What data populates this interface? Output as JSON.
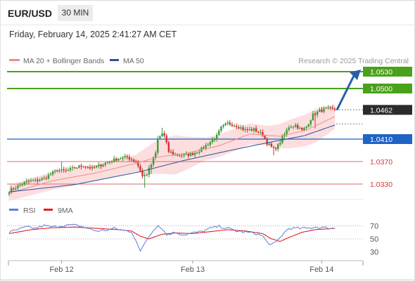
{
  "header": {
    "symbol": "EUR/USD",
    "timeframe": "30 MIN",
    "datetime": "Friday, February 14, 2025 2:41:27 AM CET"
  },
  "legend": {
    "ma20_label": "MA 20 + Bollinger Bands",
    "ma50_label": "MA 50",
    "credit": "Research © 2025 Trading Central",
    "rsi_label": "RSI",
    "rsi_ma_label": "9MA"
  },
  "colors": {
    "bull": "#3a9b3a",
    "bear": "#d23030",
    "ma20": "#f08c8c",
    "band_fill": "#fbd3d3",
    "ma50": "#2b4f9e",
    "resistance": "#4aa11a",
    "pivot": "#1f63c6",
    "support": "#e26b6b",
    "rsi": "#5b7fd9",
    "rsi_ma": "#e02020",
    "arrow": "#2a5ea8"
  },
  "chart_data": {
    "type": "candlestick",
    "instrument": "EUR/USD",
    "interval": "30 MIN",
    "y_range": [
      1.0305,
      1.0545
    ],
    "x_labels": [
      "Feb 12",
      "Feb 13",
      "Feb 14"
    ],
    "levels": [
      {
        "value": "1.0530",
        "kind": "resistance",
        "boxed": true
      },
      {
        "value": "1.0500",
        "kind": "resistance",
        "boxed": true
      },
      {
        "value": "1.0462",
        "kind": "last",
        "boxed": true
      },
      {
        "value": "1.0410",
        "kind": "pivot",
        "boxed": true
      },
      {
        "value": "1.0370",
        "kind": "support",
        "boxed": false
      },
      {
        "value": "1.0330",
        "kind": "support",
        "boxed": false
      }
    ],
    "forecast_target": 1.053,
    "rsi_ticks": [
      "70",
      "50",
      "30"
    ],
    "rsi_range": [
      20,
      80
    ],
    "anchors": {
      "close": [
        [
          0,
          1.0318
        ],
        [
          4,
          1.0326
        ],
        [
          8,
          1.0334
        ],
        [
          12,
          1.0336
        ],
        [
          16,
          1.034
        ],
        [
          20,
          1.035
        ],
        [
          22,
          1.0355
        ],
        [
          26,
          1.0353
        ],
        [
          30,
          1.0359
        ],
        [
          34,
          1.0363
        ],
        [
          38,
          1.0358
        ],
        [
          42,
          1.0364
        ],
        [
          46,
          1.037
        ],
        [
          50,
          1.0376
        ],
        [
          54,
          1.0378
        ],
        [
          58,
          1.037
        ],
        [
          60,
          1.0355
        ],
        [
          61,
          1.0344
        ],
        [
          63,
          1.0348
        ],
        [
          65,
          1.0365
        ],
        [
          67,
          1.0385
        ],
        [
          68,
          1.041
        ],
        [
          70,
          1.042
        ],
        [
          71,
          1.0415
        ],
        [
          73,
          1.0388
        ],
        [
          76,
          1.0382
        ],
        [
          80,
          1.0381
        ],
        [
          84,
          1.0384
        ],
        [
          88,
          1.0392
        ],
        [
          92,
          1.0405
        ],
        [
          95,
          1.0415
        ],
        [
          97,
          1.043
        ],
        [
          100,
          1.0438
        ],
        [
          104,
          1.0434
        ],
        [
          108,
          1.0426
        ],
        [
          112,
          1.0427
        ],
        [
          116,
          1.0418
        ],
        [
          118,
          1.0403
        ],
        [
          121,
          1.0392
        ],
        [
          123,
          1.0398
        ],
        [
          125,
          1.0412
        ],
        [
          128,
          1.0432
        ],
        [
          131,
          1.0435
        ],
        [
          134,
          1.0425
        ],
        [
          136,
          1.0432
        ],
        [
          139,
          1.0453
        ],
        [
          142,
          1.046
        ],
        [
          145,
          1.0464
        ],
        [
          149,
          1.0462
        ]
      ],
      "ma20": [
        [
          0,
          1.0314
        ],
        [
          20,
          1.0336
        ],
        [
          40,
          1.035
        ],
        [
          58,
          1.0367
        ],
        [
          68,
          1.0378
        ],
        [
          80,
          1.0384
        ],
        [
          96,
          1.0398
        ],
        [
          110,
          1.0419
        ],
        [
          124,
          1.0415
        ],
        [
          136,
          1.0426
        ],
        [
          149,
          1.045
        ]
      ],
      "band": [
        [
          0,
          0.0014
        ],
        [
          20,
          0.0016
        ],
        [
          40,
          0.0014
        ],
        [
          58,
          0.0015
        ],
        [
          66,
          0.0028
        ],
        [
          76,
          0.0035
        ],
        [
          90,
          0.002
        ],
        [
          104,
          0.002
        ],
        [
          118,
          0.0017
        ],
        [
          128,
          0.0025
        ],
        [
          140,
          0.003
        ],
        [
          149,
          0.0022
        ]
      ],
      "ma50": [
        [
          0,
          1.0316
        ],
        [
          30,
          1.0329
        ],
        [
          60,
          1.0352
        ],
        [
          80,
          1.0372
        ],
        [
          100,
          1.0389
        ],
        [
          120,
          1.0405
        ],
        [
          135,
          1.0416
        ],
        [
          149,
          1.0435
        ]
      ],
      "rsi": [
        [
          0,
          60
        ],
        [
          4,
          64
        ],
        [
          8,
          68
        ],
        [
          12,
          66
        ],
        [
          16,
          70
        ],
        [
          20,
          68
        ],
        [
          24,
          70
        ],
        [
          28,
          71
        ],
        [
          32,
          70
        ],
        [
          36,
          66
        ],
        [
          40,
          62
        ],
        [
          44,
          63
        ],
        [
          48,
          66
        ],
        [
          52,
          63
        ],
        [
          56,
          61
        ],
        [
          58,
          48
        ],
        [
          60,
          30
        ],
        [
          62,
          44
        ],
        [
          64,
          54
        ],
        [
          66,
          64
        ],
        [
          68,
          70
        ],
        [
          70,
          66
        ],
        [
          72,
          56
        ],
        [
          74,
          58
        ],
        [
          76,
          60
        ],
        [
          80,
          56
        ],
        [
          84,
          59
        ],
        [
          88,
          61
        ],
        [
          92,
          66
        ],
        [
          96,
          69
        ],
        [
          100,
          66
        ],
        [
          104,
          62
        ],
        [
          108,
          60
        ],
        [
          112,
          59
        ],
        [
          116,
          54
        ],
        [
          118,
          45
        ],
        [
          120,
          41
        ],
        [
          122,
          44
        ],
        [
          124,
          52
        ],
        [
          126,
          60
        ],
        [
          128,
          66
        ],
        [
          132,
          66
        ],
        [
          136,
          66
        ],
        [
          140,
          68
        ],
        [
          144,
          67
        ],
        [
          148,
          66
        ],
        [
          149,
          66
        ]
      ],
      "rsi_ma": [
        [
          0,
          58
        ],
        [
          10,
          64
        ],
        [
          20,
          67
        ],
        [
          30,
          68
        ],
        [
          40,
          66
        ],
        [
          50,
          64
        ],
        [
          56,
          62
        ],
        [
          60,
          54
        ],
        [
          64,
          50
        ],
        [
          70,
          57
        ],
        [
          76,
          59
        ],
        [
          84,
          58
        ],
        [
          92,
          61
        ],
        [
          100,
          64
        ],
        [
          108,
          62
        ],
        [
          116,
          58
        ],
        [
          120,
          50
        ],
        [
          124,
          46
        ],
        [
          128,
          52
        ],
        [
          134,
          60
        ],
        [
          140,
          64
        ],
        [
          149,
          66
        ]
      ]
    }
  }
}
